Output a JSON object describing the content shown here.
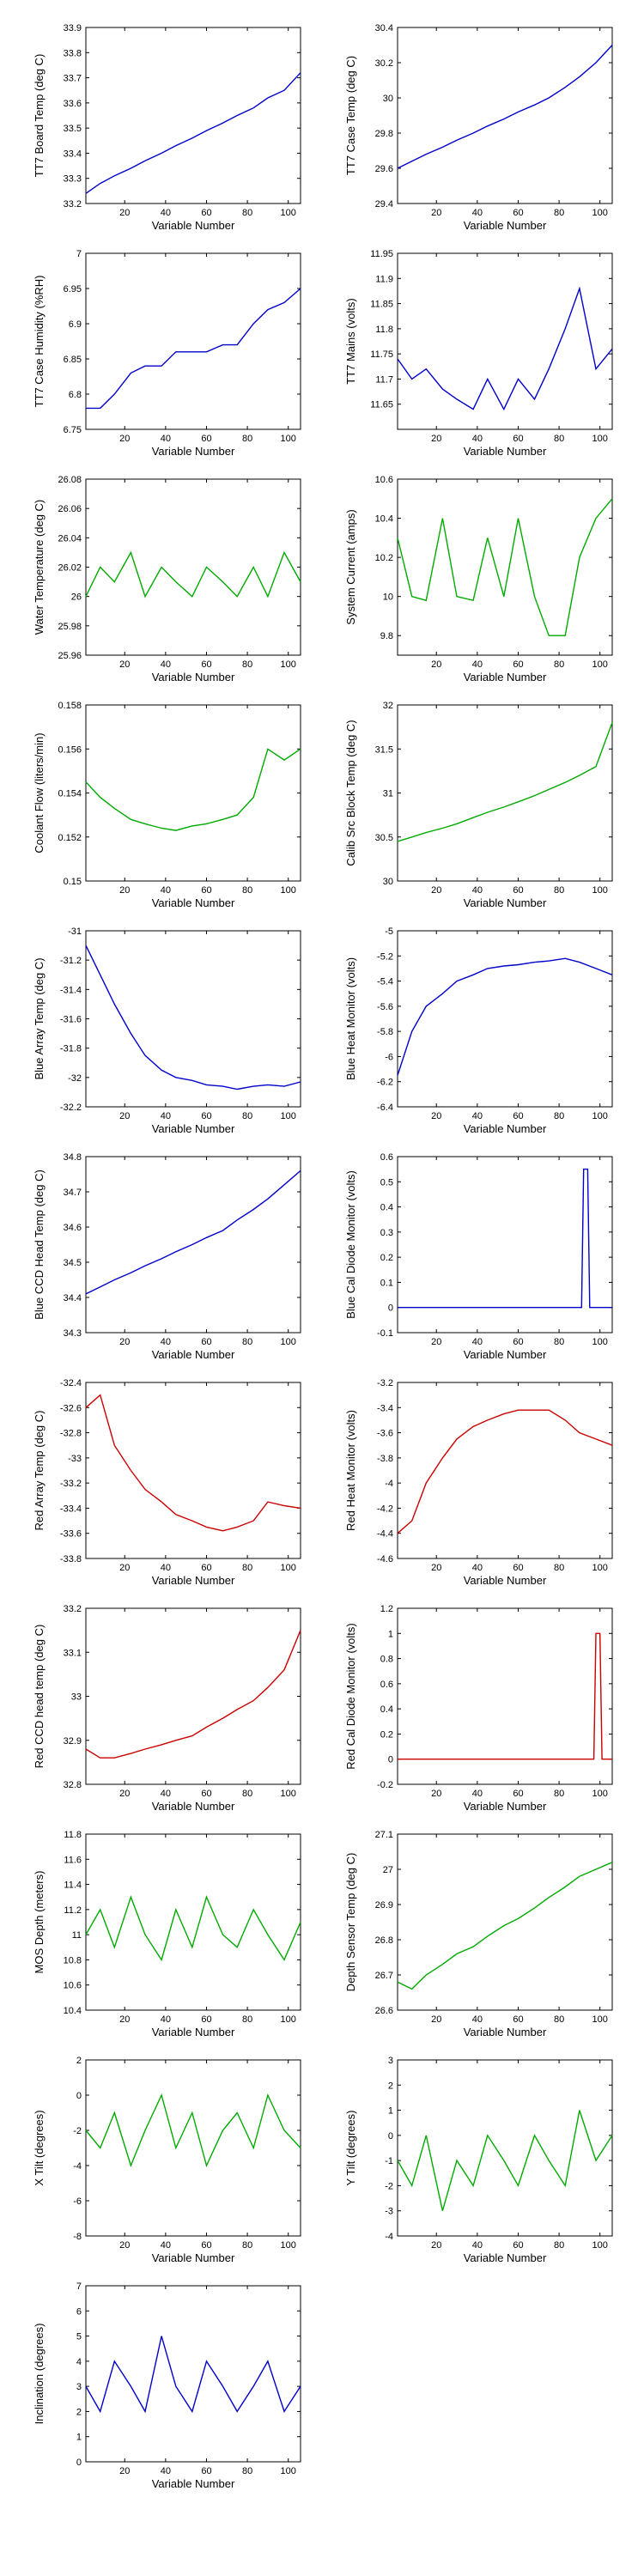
{
  "chart_data": [
    {
      "type": "line",
      "title": "",
      "xlabel": "Variable Number",
      "ylabel": "TT7 Board Temp (deg C)",
      "color": "#0000cc",
      "xlim": [
        1,
        106
      ],
      "ylim": [
        33.2,
        33.9
      ],
      "x_ticks": [
        20,
        40,
        60,
        80,
        100
      ],
      "y_ticks": [
        "33.2",
        "33.3",
        "33.4",
        "33.5",
        "33.6",
        "33.7",
        "33.8",
        "33.9"
      ],
      "x": [
        1,
        8,
        15,
        23,
        30,
        38,
        45,
        53,
        60,
        68,
        75,
        83,
        90,
        98,
        106
      ],
      "values": [
        33.24,
        33.28,
        33.31,
        33.34,
        33.37,
        33.4,
        33.43,
        33.46,
        33.49,
        33.52,
        33.55,
        33.58,
        33.62,
        33.65,
        33.72
      ]
    },
    {
      "type": "line",
      "title": "",
      "xlabel": "Variable Number",
      "ylabel": "TT7 Case Temp (deg C)",
      "color": "#0000cc",
      "xlim": [
        1,
        106
      ],
      "ylim": [
        29.4,
        30.4
      ],
      "x_ticks": [
        20,
        40,
        60,
        80,
        100
      ],
      "y_ticks": [
        "29.4",
        "29.6",
        "29.8",
        "30",
        "30.2",
        "30.4"
      ],
      "x": [
        1,
        8,
        15,
        23,
        30,
        38,
        45,
        53,
        60,
        68,
        75,
        83,
        90,
        98,
        106
      ],
      "values": [
        29.6,
        29.64,
        29.68,
        29.72,
        29.76,
        29.8,
        29.84,
        29.88,
        29.92,
        29.96,
        30.0,
        30.06,
        30.12,
        30.2,
        30.3
      ]
    },
    {
      "type": "line",
      "title": "",
      "xlabel": "Variable Number",
      "ylabel": "TT7 Case Humidity (%RH)",
      "color": "#0000cc",
      "xlim": [
        1,
        106
      ],
      "ylim": [
        6.75,
        7.0
      ],
      "x_ticks": [
        20,
        40,
        60,
        80,
        100
      ],
      "y_ticks": [
        "6.75",
        "6.8",
        "6.85",
        "6.9",
        "6.95",
        "7"
      ],
      "x": [
        1,
        8,
        15,
        23,
        30,
        38,
        45,
        53,
        60,
        68,
        75,
        83,
        90,
        98,
        106
      ],
      "values": [
        6.78,
        6.78,
        6.8,
        6.83,
        6.84,
        6.84,
        6.86,
        6.86,
        6.86,
        6.87,
        6.87,
        6.9,
        6.92,
        6.93,
        6.95
      ]
    },
    {
      "type": "line",
      "title": "",
      "xlabel": "Variable Number",
      "ylabel": "TT7 Mains  (volts)",
      "color": "#0000cc",
      "xlim": [
        1,
        106
      ],
      "ylim": [
        11.6,
        11.95
      ],
      "x_ticks": [
        20,
        40,
        60,
        80,
        100
      ],
      "y_ticks": [
        "11.65",
        "11.7",
        "11.75",
        "11.8",
        "11.85",
        "11.9",
        "11.95"
      ],
      "x": [
        1,
        8,
        15,
        23,
        30,
        38,
        45,
        53,
        60,
        68,
        75,
        83,
        90,
        98,
        106
      ],
      "values": [
        11.74,
        11.7,
        11.72,
        11.68,
        11.66,
        11.64,
        11.7,
        11.64,
        11.7,
        11.66,
        11.72,
        11.8,
        11.88,
        11.72,
        11.76
      ]
    },
    {
      "type": "line",
      "title": "",
      "xlabel": "Variable Number",
      "ylabel": "Water Temperature (deg C)",
      "color": "#00aa00",
      "xlim": [
        1,
        106
      ],
      "ylim": [
        25.96,
        26.08
      ],
      "x_ticks": [
        20,
        40,
        60,
        80,
        100
      ],
      "y_ticks": [
        "25.96",
        "25.98",
        "26",
        "26.02",
        "26.04",
        "26.06",
        "26.08"
      ],
      "x": [
        1,
        8,
        15,
        23,
        30,
        38,
        45,
        53,
        60,
        68,
        75,
        83,
        90,
        98,
        106
      ],
      "values": [
        26.0,
        26.02,
        26.01,
        26.03,
        26.0,
        26.02,
        26.01,
        26.0,
        26.02,
        26.01,
        26.0,
        26.02,
        26.0,
        26.03,
        26.01
      ]
    },
    {
      "type": "line",
      "title": "",
      "xlabel": "Variable Number",
      "ylabel": "System Current (amps)",
      "color": "#00aa00",
      "xlim": [
        1,
        106
      ],
      "ylim": [
        9.7,
        10.6
      ],
      "x_ticks": [
        20,
        40,
        60,
        80,
        100
      ],
      "y_ticks": [
        "9.8",
        "10",
        "10.2",
        "10.4",
        "10.6"
      ],
      "x": [
        1,
        8,
        15,
        23,
        30,
        38,
        45,
        53,
        60,
        68,
        75,
        83,
        90,
        98,
        106
      ],
      "values": [
        10.3,
        10.0,
        9.98,
        10.4,
        10.0,
        9.98,
        10.3,
        10.0,
        10.4,
        10.0,
        9.8,
        9.8,
        10.2,
        10.4,
        10.5
      ]
    },
    {
      "type": "line",
      "title": "",
      "xlabel": "Variable Number",
      "ylabel": "Coolant Flow (liters/min)",
      "color": "#00aa00",
      "xlim": [
        1,
        106
      ],
      "ylim": [
        0.15,
        0.158
      ],
      "x_ticks": [
        20,
        40,
        60,
        80,
        100
      ],
      "y_ticks": [
        "0.15",
        "0.152",
        "0.154",
        "0.156",
        "0.158"
      ],
      "x": [
        1,
        8,
        15,
        23,
        30,
        38,
        45,
        53,
        60,
        68,
        75,
        83,
        90,
        98,
        106
      ],
      "values": [
        0.1545,
        0.1538,
        0.1533,
        0.1528,
        0.1526,
        0.1524,
        0.1523,
        0.1525,
        0.1526,
        0.1528,
        0.153,
        0.1538,
        0.156,
        0.1555,
        0.156
      ]
    },
    {
      "type": "line",
      "title": "",
      "xlabel": "Variable Number",
      "ylabel": "Calib Src Block Temp (deg C)",
      "color": "#00aa00",
      "xlim": [
        1,
        106
      ],
      "ylim": [
        30,
        32
      ],
      "x_ticks": [
        20,
        40,
        60,
        80,
        100
      ],
      "y_ticks": [
        "30",
        "30.5",
        "31",
        "31.5",
        "32"
      ],
      "x": [
        1,
        8,
        15,
        23,
        30,
        38,
        45,
        53,
        60,
        68,
        75,
        83,
        90,
        98,
        106
      ],
      "values": [
        30.45,
        30.5,
        30.55,
        30.6,
        30.65,
        30.72,
        30.78,
        30.84,
        30.9,
        30.97,
        31.04,
        31.12,
        31.2,
        31.3,
        31.8
      ]
    },
    {
      "type": "line",
      "title": "",
      "xlabel": "Variable Number",
      "ylabel": "Blue Array Temp (deg C)",
      "color": "#0000cc",
      "xlim": [
        1,
        106
      ],
      "ylim": [
        -32.2,
        -31
      ],
      "x_ticks": [
        20,
        40,
        60,
        80,
        100
      ],
      "y_ticks": [
        "-32.2",
        "-32",
        "-31.8",
        "-31.6",
        "-31.4",
        "-31.2",
        "-31"
      ],
      "x": [
        1,
        8,
        15,
        23,
        30,
        38,
        45,
        53,
        60,
        68,
        75,
        83,
        90,
        98,
        106
      ],
      "values": [
        -31.1,
        -31.3,
        -31.5,
        -31.7,
        -31.85,
        -31.95,
        -32.0,
        -32.02,
        -32.05,
        -32.06,
        -32.08,
        -32.06,
        -32.05,
        -32.06,
        -32.03
      ]
    },
    {
      "type": "line",
      "title": "",
      "xlabel": "Variable Number",
      "ylabel": "Blue Heat Monitor (volts)",
      "color": "#0000cc",
      "xlim": [
        1,
        106
      ],
      "ylim": [
        -6.4,
        -5
      ],
      "x_ticks": [
        20,
        40,
        60,
        80,
        100
      ],
      "y_ticks": [
        "-6.4",
        "-6.2",
        "-6",
        "-5.8",
        "-5.6",
        "-5.4",
        "-5.2",
        "-5"
      ],
      "x": [
        1,
        8,
        15,
        23,
        30,
        38,
        45,
        53,
        60,
        68,
        75,
        83,
        90,
        98,
        106
      ],
      "values": [
        -6.15,
        -5.8,
        -5.6,
        -5.5,
        -5.4,
        -5.35,
        -5.3,
        -5.28,
        -5.27,
        -5.25,
        -5.24,
        -5.22,
        -5.25,
        -5.3,
        -5.35
      ]
    },
    {
      "type": "line",
      "title": "",
      "xlabel": "Variable Number",
      "ylabel": "Blue CCD Head Temp (deg C)",
      "color": "#0000cc",
      "xlim": [
        1,
        106
      ],
      "ylim": [
        34.3,
        34.8
      ],
      "x_ticks": [
        20,
        40,
        60,
        80,
        100
      ],
      "y_ticks": [
        "34.3",
        "34.4",
        "34.5",
        "34.6",
        "34.7",
        "34.8"
      ],
      "x": [
        1,
        8,
        15,
        23,
        30,
        38,
        45,
        53,
        60,
        68,
        75,
        83,
        90,
        98,
        106
      ],
      "values": [
        34.41,
        34.43,
        34.45,
        34.47,
        34.49,
        34.51,
        34.53,
        34.55,
        34.57,
        34.59,
        34.62,
        34.65,
        34.68,
        34.72,
        34.76
      ]
    },
    {
      "type": "line",
      "title": "",
      "xlabel": "Variable Number",
      "ylabel": "Blue Cal Diode Monitor (volts)",
      "color": "#0000cc",
      "xlim": [
        1,
        106
      ],
      "ylim": [
        -0.1,
        0.6
      ],
      "x_ticks": [
        20,
        40,
        60,
        80,
        100
      ],
      "y_ticks": [
        "-0.1",
        "0",
        "0.1",
        "0.2",
        "0.3",
        "0.4",
        "0.5",
        "0.6"
      ],
      "x": [
        1,
        20,
        40,
        60,
        80,
        91,
        92,
        93,
        94,
        95,
        106
      ],
      "values": [
        0,
        0,
        0,
        0,
        0,
        0,
        0.55,
        0.55,
        0.55,
        0,
        0
      ]
    },
    {
      "type": "line",
      "title": "",
      "xlabel": "Variable Number",
      "ylabel": "Red Array Temp (deg C)",
      "color": "#cc0000",
      "xlim": [
        1,
        106
      ],
      "ylim": [
        -33.8,
        -32.4
      ],
      "x_ticks": [
        20,
        40,
        60,
        80,
        100
      ],
      "y_ticks": [
        "-33.8",
        "-33.6",
        "-33.4",
        "-33.2",
        "-33",
        "-32.8",
        "-32.6",
        "-32.4"
      ],
      "x": [
        1,
        8,
        15,
        23,
        30,
        38,
        45,
        53,
        60,
        68,
        75,
        83,
        90,
        98,
        106
      ],
      "values": [
        -32.6,
        -32.5,
        -32.9,
        -33.1,
        -33.25,
        -33.35,
        -33.45,
        -33.5,
        -33.55,
        -33.58,
        -33.55,
        -33.5,
        -33.35,
        -33.38,
        -33.4
      ]
    },
    {
      "type": "line",
      "title": "",
      "xlabel": "Variable Number",
      "ylabel": "Red Heat Monitor (volts)",
      "color": "#cc0000",
      "xlim": [
        1,
        106
      ],
      "ylim": [
        -4.6,
        -3.2
      ],
      "x_ticks": [
        20,
        40,
        60,
        80,
        100
      ],
      "y_ticks": [
        "-4.6",
        "-4.4",
        "-4.2",
        "-4",
        "-3.8",
        "-3.6",
        "-3.4",
        "-3.2"
      ],
      "x": [
        1,
        8,
        15,
        23,
        30,
        38,
        45,
        53,
        60,
        68,
        75,
        83,
        90,
        98,
        106
      ],
      "values": [
        -4.4,
        -4.3,
        -4.0,
        -3.8,
        -3.65,
        -3.55,
        -3.5,
        -3.45,
        -3.42,
        -3.42,
        -3.42,
        -3.5,
        -3.6,
        -3.65,
        -3.7
      ]
    },
    {
      "type": "line",
      "title": "",
      "xlabel": "Variable Number",
      "ylabel": "Red CCD head temp (deg C)",
      "color": "#cc0000",
      "xlim": [
        1,
        106
      ],
      "ylim": [
        32.8,
        33.2
      ],
      "x_ticks": [
        20,
        40,
        60,
        80,
        100
      ],
      "y_ticks": [
        "32.8",
        "32.9",
        "33",
        "33.1",
        "33.2"
      ],
      "x": [
        1,
        8,
        15,
        23,
        30,
        38,
        45,
        53,
        60,
        68,
        75,
        83,
        90,
        98,
        106
      ],
      "values": [
        32.88,
        32.86,
        32.86,
        32.87,
        32.88,
        32.89,
        32.9,
        32.91,
        32.93,
        32.95,
        32.97,
        32.99,
        33.02,
        33.06,
        33.15
      ]
    },
    {
      "type": "line",
      "title": "",
      "xlabel": "Variable Number",
      "ylabel": "Red Cal Diode Monitor (volts)",
      "color": "#cc0000",
      "xlim": [
        1,
        106
      ],
      "ylim": [
        -0.2,
        1.2
      ],
      "x_ticks": [
        20,
        40,
        60,
        80,
        100
      ],
      "y_ticks": [
        "-0.2",
        "0",
        "0.2",
        "0.4",
        "0.6",
        "0.8",
        "1",
        "1.2"
      ],
      "x": [
        1,
        20,
        40,
        60,
        80,
        97,
        98,
        99,
        100,
        101,
        106
      ],
      "values": [
        0,
        0,
        0,
        0,
        0,
        0,
        1.0,
        1.0,
        1.0,
        0,
        0
      ]
    },
    {
      "type": "line",
      "title": "",
      "xlabel": "Variable Number",
      "ylabel": "MOS Depth  (meters)",
      "color": "#00aa00",
      "xlim": [
        1,
        106
      ],
      "ylim": [
        10.4,
        11.8
      ],
      "x_ticks": [
        20,
        40,
        60,
        80,
        100
      ],
      "y_ticks": [
        "10.4",
        "10.6",
        "10.8",
        "11",
        "11.2",
        "11.4",
        "11.6",
        "11.8"
      ],
      "x": [
        1,
        8,
        15,
        23,
        30,
        38,
        45,
        53,
        60,
        68,
        75,
        83,
        90,
        98,
        106
      ],
      "values": [
        11.0,
        11.2,
        10.9,
        11.3,
        11.0,
        10.8,
        11.2,
        10.9,
        11.3,
        11.0,
        10.9,
        11.2,
        11.0,
        10.8,
        11.1
      ]
    },
    {
      "type": "line",
      "title": "",
      "xlabel": "Variable Number",
      "ylabel": "Depth Sensor Temp (deg C)",
      "color": "#00aa00",
      "xlim": [
        1,
        106
      ],
      "ylim": [
        26.6,
        27.1
      ],
      "x_ticks": [
        20,
        40,
        60,
        80,
        100
      ],
      "y_ticks": [
        "26.6",
        "26.7",
        "26.8",
        "26.9",
        "27",
        "27.1"
      ],
      "x": [
        1,
        8,
        15,
        23,
        30,
        38,
        45,
        53,
        60,
        68,
        75,
        83,
        90,
        98,
        106
      ],
      "values": [
        26.68,
        26.66,
        26.7,
        26.73,
        26.76,
        26.78,
        26.81,
        26.84,
        26.86,
        26.89,
        26.92,
        26.95,
        26.98,
        27.0,
        27.02
      ]
    },
    {
      "type": "line",
      "title": "",
      "xlabel": "Variable Number",
      "ylabel": "X Tilt  (degrees)",
      "color": "#00aa00",
      "xlim": [
        1,
        106
      ],
      "ylim": [
        -8,
        2
      ],
      "x_ticks": [
        20,
        40,
        60,
        80,
        100
      ],
      "y_ticks": [
        "-8",
        "-6",
        "-4",
        "-2",
        "0",
        "2"
      ],
      "x": [
        1,
        8,
        15,
        23,
        30,
        38,
        45,
        53,
        60,
        68,
        75,
        83,
        90,
        98,
        106
      ],
      "values": [
        -2,
        -3,
        -1,
        -4,
        -2,
        0,
        -3,
        -1,
        -4,
        -2,
        -1,
        -3,
        0,
        -2,
        -3
      ]
    },
    {
      "type": "line",
      "title": "",
      "xlabel": "Variable Number",
      "ylabel": "Y Tilt  (degrees)",
      "color": "#00aa00",
      "xlim": [
        1,
        106
      ],
      "ylim": [
        -4,
        3
      ],
      "x_ticks": [
        20,
        40,
        60,
        80,
        100
      ],
      "y_ticks": [
        "-4",
        "-3",
        "-2",
        "-1",
        "0",
        "1",
        "2",
        "3"
      ],
      "x": [
        1,
        8,
        15,
        23,
        30,
        38,
        45,
        53,
        60,
        68,
        75,
        83,
        90,
        98,
        106
      ],
      "values": [
        -1,
        -2,
        0,
        -3,
        -1,
        -2,
        0,
        -1,
        -2,
        0,
        -1,
        -2,
        1,
        -1,
        0
      ]
    },
    {
      "type": "line",
      "title": "",
      "xlabel": "Variable Number",
      "ylabel": "Inclination  (degrees)",
      "color": "#0000cc",
      "xlim": [
        1,
        106
      ],
      "ylim": [
        0,
        7
      ],
      "x_ticks": [
        20,
        40,
        60,
        80,
        100
      ],
      "y_ticks": [
        "0",
        "1",
        "2",
        "3",
        "4",
        "5",
        "6",
        "7"
      ],
      "x": [
        1,
        8,
        15,
        23,
        30,
        38,
        45,
        53,
        60,
        68,
        75,
        83,
        90,
        98,
        106
      ],
      "values": [
        3,
        2,
        4,
        3,
        2,
        5,
        3,
        2,
        4,
        3,
        2,
        3,
        4,
        2,
        3
      ]
    }
  ]
}
